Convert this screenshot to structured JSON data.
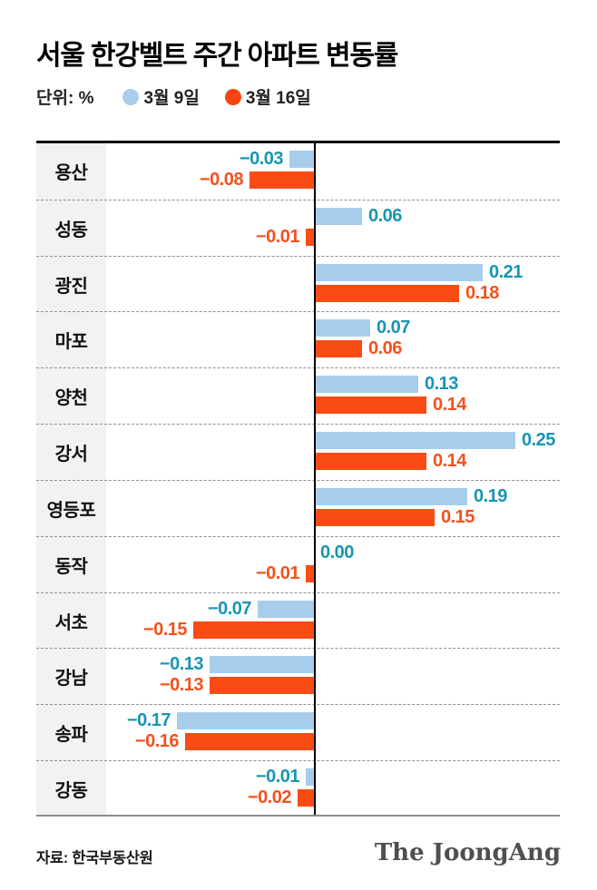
{
  "title": "서울 한강벨트 주간 아파트 변동률",
  "unit_label": "단위: %",
  "legend": [
    {
      "label": "3월 9일",
      "color": "#A9CDEB"
    },
    {
      "label": "3월 16일",
      "color": "#FA4411"
    }
  ],
  "source": "자료: 한국부동산원",
  "logo": "The JoongAng",
  "colors": {
    "bar_blue": "#A8CDEB",
    "bar_orange": "#F94C15",
    "label_blue": "#1795B5",
    "label_orange": "#F4511E",
    "category_column_bg": "#F2F2F2",
    "axis": "#000000",
    "top_rule": "#111111",
    "bottom_rule": "#8C8C8C",
    "row_divider": "#8F8F8F"
  },
  "chart_data": {
    "type": "bar",
    "orientation": "horizontal",
    "title": "서울 한강벨트 주간 아파트 변동률",
    "unit": "%",
    "xlim": [
      -0.26,
      0.31
    ],
    "grid": "dashed row dividers",
    "legend_position": "top",
    "categories": [
      "용산",
      "성동",
      "광진",
      "마포",
      "양천",
      "강서",
      "영등포",
      "동작",
      "서초",
      "강남",
      "송파",
      "강동"
    ],
    "series": [
      {
        "name": "3월 9일",
        "key": "mar9",
        "color": "#A8CDEB",
        "label_color": "#1795B5",
        "values": [
          -0.03,
          0.06,
          0.21,
          0.07,
          0.13,
          0.25,
          0.19,
          0.0,
          -0.07,
          -0.13,
          -0.17,
          -0.01
        ]
      },
      {
        "name": "3월 16일",
        "key": "mar16",
        "color": "#F94C15",
        "label_color": "#F4511E",
        "values": [
          -0.08,
          -0.01,
          0.18,
          0.06,
          0.14,
          0.14,
          0.15,
          -0.01,
          -0.15,
          -0.13,
          -0.16,
          -0.02
        ]
      }
    ]
  }
}
